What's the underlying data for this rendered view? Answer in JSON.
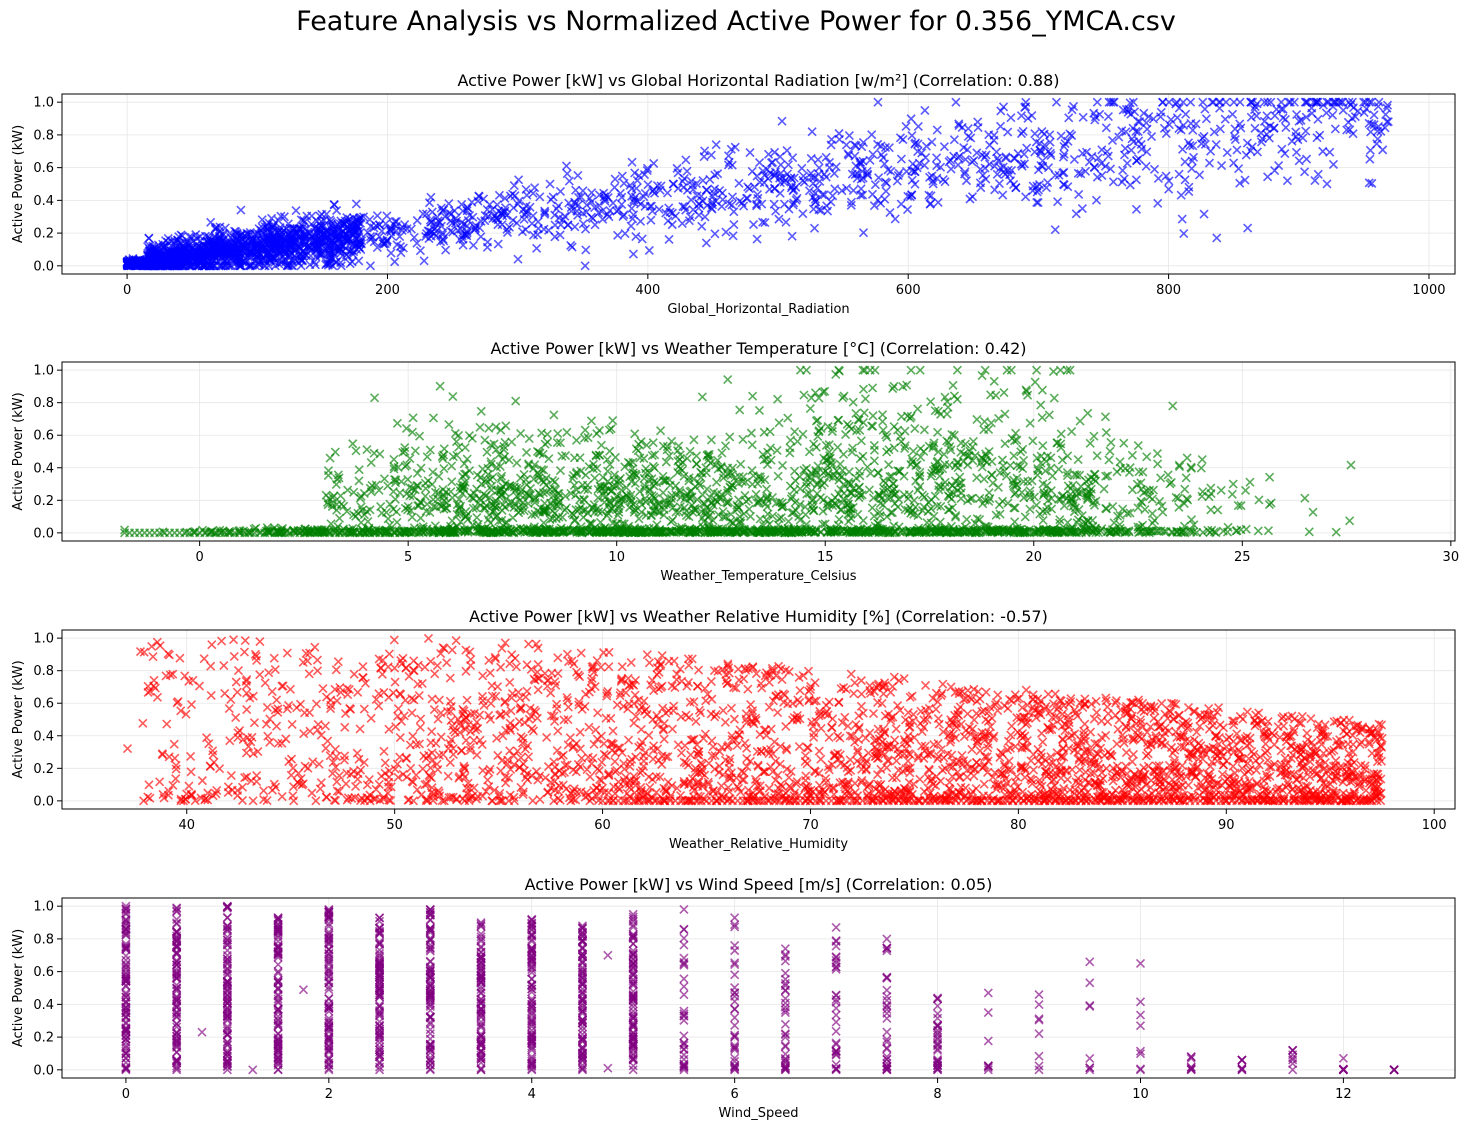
{
  "figure": {
    "title": "Feature Analysis vs Normalized Active Power for 0.356_YMCA.csv"
  },
  "chart_data": [
    {
      "type": "scatter",
      "title": "Active Power [kW] vs Global Horizontal Radiation [w/m²] (Correlation: 0.88)",
      "xlabel": "Global_Horizontal_Radiation",
      "ylabel": "Active Power (kW)",
      "xlim": [
        -50,
        1020
      ],
      "ylim": [
        -0.05,
        1.05
      ],
      "xticks": [
        0,
        200,
        400,
        600,
        800,
        1000
      ],
      "yticks": [
        0.0,
        0.2,
        0.4,
        0.6,
        0.8,
        1.0
      ],
      "grid": true,
      "marker": "x",
      "color": "#0000ff",
      "correlation": 0.88,
      "point_model": {
        "x_range": [
          0,
          970
        ],
        "slope": 0.00095,
        "intercept": 0.02,
        "noise": 0.17,
        "dense_region_max_x": 200,
        "approx_points": 2600
      },
      "sample_points": [
        [
          0,
          0.0
        ],
        [
          10,
          0.01
        ],
        [
          50,
          0.05
        ],
        [
          100,
          0.12
        ],
        [
          150,
          0.2
        ],
        [
          200,
          0.25
        ],
        [
          300,
          0.35
        ],
        [
          400,
          0.5
        ],
        [
          500,
          0.6
        ],
        [
          600,
          0.65
        ],
        [
          700,
          0.7
        ],
        [
          800,
          0.75
        ],
        [
          900,
          0.7
        ],
        [
          970,
          0.85
        ]
      ]
    },
    {
      "type": "scatter",
      "title": "Active Power [kW] vs Weather Temperature [°C] (Correlation: 0.42)",
      "xlabel": "Weather_Temperature_Celsius",
      "ylabel": "Active Power (kW)",
      "xlim": [
        -3.3,
        30.1
      ],
      "ylim": [
        -0.05,
        1.05
      ],
      "xticks": [
        0,
        5,
        10,
        15,
        20,
        25,
        30
      ],
      "yticks": [
        0.0,
        0.2,
        0.4,
        0.6,
        0.8,
        1.0
      ],
      "grid": true,
      "marker": "x",
      "color": "#008000",
      "correlation": 0.42,
      "point_model": {
        "x_range": [
          -1.8,
          28.6
        ],
        "zero_band": true,
        "spread_start_x": 3,
        "approx_points": 2600
      },
      "sample_points": [
        [
          -1.8,
          0.0
        ],
        [
          0,
          0.0
        ],
        [
          2,
          0.0
        ],
        [
          4,
          0.05
        ],
        [
          6,
          0.2
        ],
        [
          10,
          0.35
        ],
        [
          15,
          0.45
        ],
        [
          18,
          0.6
        ],
        [
          20,
          0.5
        ],
        [
          24,
          0.3
        ],
        [
          28.6,
          0.15
        ]
      ]
    },
    {
      "type": "scatter",
      "title": "Active Power [kW] vs Weather Relative Humidity [%] (Correlation: -0.57)",
      "xlabel": "Weather_Relative_Humidity",
      "ylabel": "Active Power (kW)",
      "xlim": [
        34,
        101
      ],
      "ylim": [
        -0.05,
        1.05
      ],
      "xticks": [
        40,
        50,
        60,
        70,
        80,
        90,
        100
      ],
      "yticks": [
        0.0,
        0.2,
        0.4,
        0.6,
        0.8,
        1.0
      ],
      "grid": true,
      "marker": "x",
      "color": "#ff0000",
      "correlation": -0.57,
      "point_model": {
        "x_range": [
          37,
          97.5
        ],
        "approx_points": 2800
      },
      "sample_points": [
        [
          37,
          0.8
        ],
        [
          37.5,
          0.35
        ],
        [
          40,
          0.5
        ],
        [
          45,
          0.4
        ],
        [
          50,
          0.5
        ],
        [
          55,
          0.6
        ],
        [
          60,
          0.5
        ],
        [
          65,
          0.45
        ],
        [
          70,
          0.35
        ],
        [
          80,
          0.2
        ],
        [
          90,
          0.1
        ],
        [
          97.5,
          0.0
        ]
      ]
    },
    {
      "type": "scatter",
      "title": "Active Power [kW] vs Wind Speed [m/s] (Correlation: 0.05)",
      "xlabel": "Wind_Speed",
      "ylabel": "Active Power (kW)",
      "xlim": [
        -0.63,
        13.1
      ],
      "ylim": [
        -0.05,
        1.05
      ],
      "xticks": [
        0,
        2,
        4,
        6,
        8,
        10,
        12
      ],
      "yticks": [
        0.0,
        0.2,
        0.4,
        0.6,
        0.8,
        1.0
      ],
      "grid": true,
      "marker": "x",
      "color": "#800080",
      "correlation": 0.05,
      "columns": [
        {
          "x": 0,
          "max": 1.0
        },
        {
          "x": 0.5,
          "max": 0.99
        },
        {
          "x": 1,
          "max": 1.0
        },
        {
          "x": 1.5,
          "max": 0.93
        },
        {
          "x": 2,
          "max": 0.98
        },
        {
          "x": 2.5,
          "max": 0.93
        },
        {
          "x": 3,
          "max": 0.98
        },
        {
          "x": 3.5,
          "max": 0.9
        },
        {
          "x": 4,
          "max": 0.92
        },
        {
          "x": 4.5,
          "max": 0.88
        },
        {
          "x": 5,
          "max": 0.95
        },
        {
          "x": 5.5,
          "max": 0.98
        },
        {
          "x": 6,
          "max": 0.93
        },
        {
          "x": 6.5,
          "max": 0.74
        },
        {
          "x": 7,
          "max": 0.87
        },
        {
          "x": 7.5,
          "max": 0.8
        },
        {
          "x": 8,
          "max": 0.44
        },
        {
          "x": 8.5,
          "max": 0.47
        },
        {
          "x": 9,
          "max": 0.46
        },
        {
          "x": 9.5,
          "max": 0.66
        },
        {
          "x": 10,
          "max": 0.65
        },
        {
          "x": 10.5,
          "max": 0.08
        },
        {
          "x": 11,
          "max": 0.06
        },
        {
          "x": 11.5,
          "max": 0.12
        },
        {
          "x": 12,
          "max": 0.07
        },
        {
          "x": 12.5,
          "max": 0.0
        }
      ],
      "extra_points": [
        [
          0.75,
          0.23
        ],
        [
          1.25,
          0.0
        ],
        [
          1.75,
          0.49
        ],
        [
          4.75,
          0.7
        ],
        [
          4.75,
          0.01
        ]
      ]
    }
  ]
}
